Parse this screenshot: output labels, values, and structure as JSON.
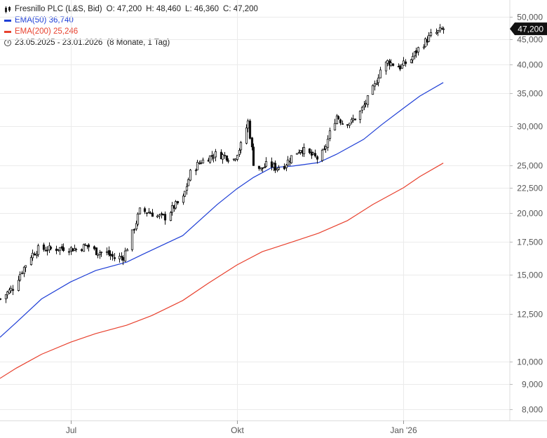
{
  "header": {
    "instrument": "Fresnillo PLC (L&S, Bid)",
    "ohlc": {
      "o_label": "O:",
      "o": "47,200",
      "h_label": "H:",
      "h": "48,460",
      "l_label": "L:",
      "l": "46,360",
      "c_label": "C:",
      "c": "47,200"
    },
    "ema50": {
      "label": "EMA(50)",
      "value": "36,740",
      "color": "#1f3fd6"
    },
    "ema200": {
      "label": "EMA(200)",
      "value": "25,246",
      "color": "#e8412e"
    },
    "range": "23.05.2025 - 23.01.2026",
    "range_detail": "(8 Monate, 1 Tag)"
  },
  "colors": {
    "candle": "#111111",
    "grid": "#ebebeb",
    "axis_text": "#555555",
    "badge_bg": "#111111",
    "badge_text": "#ffffff"
  },
  "chart_data": {
    "type": "candlestick",
    "y_scale": "log",
    "ylim": [
      7600,
      54000
    ],
    "y_ticks": [
      8000,
      9000,
      10000,
      12500,
      15000,
      17500,
      20000,
      22500,
      25000,
      30000,
      35000,
      40000,
      45000,
      50000
    ],
    "y_tick_labels": [
      "8,000",
      "9,000",
      "10,000",
      "12,500",
      "15,000",
      "17,500",
      "20,000",
      "22,500",
      "25,000",
      "30,000",
      "35,000",
      "40,000",
      "45,000",
      "50,000"
    ],
    "x_range": [
      "2025-05-23",
      "2026-02-28"
    ],
    "x_ticks": [
      {
        "date": "2025-07-01",
        "label": "Jul"
      },
      {
        "date": "2025-10-01",
        "label": "Okt"
      },
      {
        "date": "2026-01-01",
        "label": "Jan '26"
      }
    ],
    "last_price_label": "47,200",
    "last_price": 47200,
    "close_path": [
      [
        "2025-05-23",
        13400
      ],
      [
        "2025-05-30",
        14100
      ],
      [
        "2025-06-04",
        15300
      ],
      [
        "2025-06-09",
        16400
      ],
      [
        "2025-06-13",
        16900
      ],
      [
        "2025-06-20",
        16900
      ],
      [
        "2025-06-27",
        17000
      ],
      [
        "2025-07-04",
        16900
      ],
      [
        "2025-07-10",
        17200
      ],
      [
        "2025-07-15",
        16700
      ],
      [
        "2025-07-21",
        16600
      ],
      [
        "2025-07-25",
        16200
      ],
      [
        "2025-07-30",
        16300
      ],
      [
        "2025-08-04",
        18200
      ],
      [
        "2025-08-08",
        20200
      ],
      [
        "2025-08-13",
        20100
      ],
      [
        "2025-08-18",
        19700
      ],
      [
        "2025-08-22",
        19600
      ],
      [
        "2025-08-27",
        20600
      ],
      [
        "2025-09-01",
        21400
      ],
      [
        "2025-09-05",
        24100
      ],
      [
        "2025-09-10",
        25300
      ],
      [
        "2025-09-15",
        25900
      ],
      [
        "2025-09-19",
        26300
      ],
      [
        "2025-09-24",
        26100
      ],
      [
        "2025-09-29",
        25700
      ],
      [
        "2025-10-03",
        27400
      ],
      [
        "2025-10-07",
        30600
      ],
      [
        "2025-10-10",
        25300
      ],
      [
        "2025-10-14",
        24500
      ],
      [
        "2025-10-18",
        25200
      ],
      [
        "2025-10-22",
        24700
      ],
      [
        "2025-10-27",
        25000
      ],
      [
        "2025-10-31",
        26000
      ],
      [
        "2025-11-05",
        27000
      ],
      [
        "2025-11-10",
        26300
      ],
      [
        "2025-11-14",
        25800
      ],
      [
        "2025-11-18",
        26600
      ],
      [
        "2025-11-21",
        29000
      ],
      [
        "2025-11-25",
        31500
      ],
      [
        "2025-11-28",
        30500
      ],
      [
        "2025-12-03",
        30600
      ],
      [
        "2025-12-08",
        32000
      ],
      [
        "2025-12-12",
        34000
      ],
      [
        "2025-12-16",
        36200
      ],
      [
        "2025-12-19",
        39000
      ],
      [
        "2025-12-23",
        40500
      ],
      [
        "2025-12-30",
        39500
      ],
      [
        "2026-01-05",
        41000
      ],
      [
        "2026-01-09",
        43000
      ],
      [
        "2026-01-13",
        44500
      ],
      [
        "2026-01-16",
        45800
      ],
      [
        "2026-01-20",
        46500
      ],
      [
        "2026-01-23",
        47200
      ]
    ],
    "series": [
      {
        "name": "EMA(50)",
        "color": "#1f3fd6",
        "points": [
          [
            "2025-05-23",
            11200
          ],
          [
            "2025-06-01",
            12000
          ],
          [
            "2025-06-15",
            13400
          ],
          [
            "2025-07-01",
            14500
          ],
          [
            "2025-07-15",
            15300
          ],
          [
            "2025-08-01",
            15900
          ],
          [
            "2025-08-10",
            16500
          ],
          [
            "2025-09-01",
            18000
          ],
          [
            "2025-09-20",
            20800
          ],
          [
            "2025-10-01",
            22400
          ],
          [
            "2025-10-10",
            23600
          ],
          [
            "2025-10-20",
            24700
          ],
          [
            "2025-11-01",
            24900
          ],
          [
            "2025-11-15",
            25300
          ],
          [
            "2025-11-25",
            26300
          ],
          [
            "2025-12-10",
            28200
          ],
          [
            "2025-12-20",
            30200
          ],
          [
            "2026-01-01",
            32600
          ],
          [
            "2026-01-10",
            34500
          ],
          [
            "2026-01-23",
            36740
          ]
        ]
      },
      {
        "name": "EMA(200)",
        "color": "#e8412e",
        "points": [
          [
            "2025-05-23",
            9250
          ],
          [
            "2025-06-01",
            9700
          ],
          [
            "2025-06-15",
            10350
          ],
          [
            "2025-07-01",
            10950
          ],
          [
            "2025-07-15",
            11400
          ],
          [
            "2025-08-01",
            11850
          ],
          [
            "2025-08-15",
            12400
          ],
          [
            "2025-09-01",
            13300
          ],
          [
            "2025-09-15",
            14400
          ],
          [
            "2025-10-01",
            15700
          ],
          [
            "2025-10-15",
            16700
          ],
          [
            "2025-11-01",
            17500
          ],
          [
            "2025-11-15",
            18200
          ],
          [
            "2025-12-01",
            19300
          ],
          [
            "2025-12-15",
            20800
          ],
          [
            "2026-01-01",
            22500
          ],
          [
            "2026-01-10",
            23700
          ],
          [
            "2026-01-23",
            25246
          ]
        ]
      }
    ]
  }
}
